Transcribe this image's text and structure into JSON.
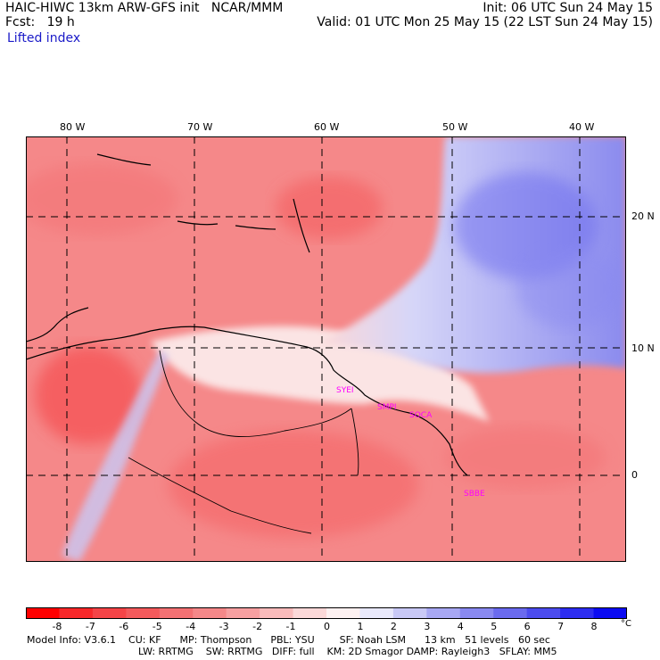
{
  "header": {
    "line1_left": "HAIC-HIWC 13km ARW-GFS init   NCAR/MMM",
    "line1_right": "Init: 06 UTC Sun 24 May 15",
    "line2_left": "Fcst:   19 h",
    "line2_right": "Valid: 01 UTC Mon 25 May 15 (22 LST Sun 24 May 15)",
    "field": "Lifted index"
  },
  "map": {
    "lon_labels": [
      "80 W",
      "70 W",
      "60 W",
      "50 W",
      "40 W"
    ],
    "lat_labels": [
      "20 N",
      "10 N",
      "0"
    ],
    "stations": [
      "SYEI",
      "SMPI",
      "SOCA",
      "SBBE"
    ]
  },
  "colorbar": {
    "ticks": [
      "-8",
      "-7",
      "-6",
      "-5",
      "-4",
      "-3",
      "-2",
      "-1",
      "0",
      "1",
      "2",
      "3",
      "4",
      "5",
      "6",
      "7",
      "8"
    ],
    "unit": "°C",
    "colors": [
      "#ff0000",
      "#f8282a",
      "#f54447",
      "#f45a5c",
      "#f37173",
      "#f58889",
      "#f7a0a1",
      "#f9bbbb",
      "#fbd8d8",
      "#fdf1f1",
      "#e9e9fb",
      "#c9c9f6",
      "#a8a8f3",
      "#8989f0",
      "#6a6aee",
      "#4c4cee",
      "#2d2df0",
      "#0b0bf2"
    ]
  },
  "footer": {
    "line1": "Model Info: V3.6.1    CU: KF      MP: Thompson      PBL: YSU        SF: Noah LSM      13 km   51 levels   60 sec",
    "line2": "LW: RRTMG    SW: RRTMG   DIFF: full    KM: 2D Smagor DAMP: Rayleigh3   SFLAY: MM5"
  }
}
